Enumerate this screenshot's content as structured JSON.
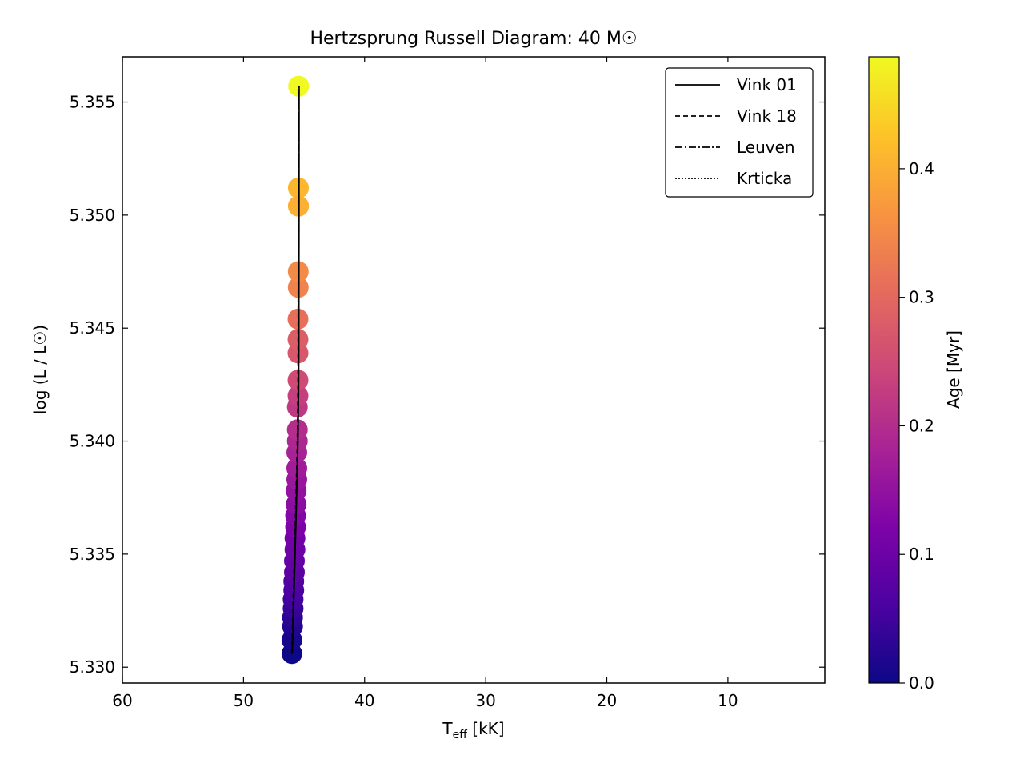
{
  "chart_data": {
    "type": "scatter",
    "title": "Hertzsprung Russell Diagram: 40 M☉",
    "xlabel_main": "T",
    "xlabel_sub": "eff",
    "xlabel_unit": " [kK]",
    "ylabel": "log (L / L☉)",
    "xlim": [
      60,
      2
    ],
    "ylim": [
      5.3293,
      5.357
    ],
    "x_ticks": [
      60,
      50,
      40,
      30,
      20,
      10
    ],
    "x_tick_labels": [
      "60",
      "50",
      "40",
      "30",
      "20",
      "10"
    ],
    "y_ticks": [
      5.33,
      5.335,
      5.34,
      5.345,
      5.35,
      5.355
    ],
    "y_tick_labels": [
      "5.330",
      "5.335",
      "5.340",
      "5.345",
      "5.350",
      "5.355"
    ],
    "grid": false,
    "legend_position": "top-right",
    "colorbar": {
      "label": "Age [Myr]",
      "colormap": "plasma",
      "range": [
        0.0,
        0.487
      ],
      "ticks": [
        0.0,
        0.1,
        0.2,
        0.3,
        0.4
      ],
      "tick_labels": [
        "0.0",
        "0.1",
        "0.2",
        "0.3",
        "0.4"
      ]
    },
    "series": [
      {
        "name": "Vink 01",
        "linestyle": "solid",
        "color": "#000000"
      },
      {
        "name": "Vink 18",
        "linestyle": "dashed",
        "color": "#000000"
      },
      {
        "name": "Leuven",
        "linestyle": "dashdot",
        "color": "#000000"
      },
      {
        "name": "Krticka",
        "linestyle": "dotted",
        "color": "#000000"
      }
    ],
    "track": {
      "teff_kK": [
        46.0,
        45.95,
        45.9,
        45.85,
        45.8,
        45.75,
        45.7,
        45.65,
        45.6,
        45.55,
        45.52,
        45.5,
        45.48,
        45.47,
        45.46,
        45.45,
        45.44
      ],
      "logL": [
        5.3306,
        5.3315,
        5.3325,
        5.3335,
        5.3345,
        5.3355,
        5.3365,
        5.3375,
        5.3385,
        5.3395,
        5.3405,
        5.3415,
        5.3425,
        5.344,
        5.346,
        5.35,
        5.3557
      ]
    },
    "points": {
      "teff_kK": [
        46.0,
        46.0,
        45.95,
        45.95,
        45.9,
        45.9,
        45.85,
        45.85,
        45.8,
        45.8,
        45.75,
        45.75,
        45.7,
        45.7,
        45.65,
        45.65,
        45.6,
        45.6,
        45.6,
        45.55,
        45.55,
        45.55,
        45.5,
        45.5,
        45.5,
        45.5,
        45.5,
        45.48,
        45.48,
        45.47,
        45.47,
        45.47,
        45.46,
        45.46,
        45.45,
        45.45
      ],
      "logL": [
        5.3306,
        5.3312,
        5.3318,
        5.3322,
        5.3326,
        5.333,
        5.3334,
        5.3338,
        5.3342,
        5.3347,
        5.3352,
        5.3357,
        5.3362,
        5.3367,
        5.3372,
        5.3378,
        5.3383,
        5.3388,
        5.3395,
        5.34,
        5.3405,
        5.3415,
        5.342,
        5.3427,
        5.3439,
        5.3445,
        5.3454,
        5.3468,
        5.3475,
        5.3504,
        5.3512,
        5.3512,
        5.3504,
        5.3504,
        5.3557,
        5.3557
      ],
      "age_myr": [
        0.0,
        0.01,
        0.02,
        0.03,
        0.04,
        0.05,
        0.06,
        0.07,
        0.08,
        0.09,
        0.1,
        0.11,
        0.12,
        0.13,
        0.14,
        0.15,
        0.16,
        0.17,
        0.18,
        0.19,
        0.2,
        0.22,
        0.23,
        0.25,
        0.27,
        0.28,
        0.31,
        0.34,
        0.35,
        0.4,
        0.41,
        0.41,
        0.4,
        0.4,
        0.487,
        0.487
      ]
    }
  }
}
